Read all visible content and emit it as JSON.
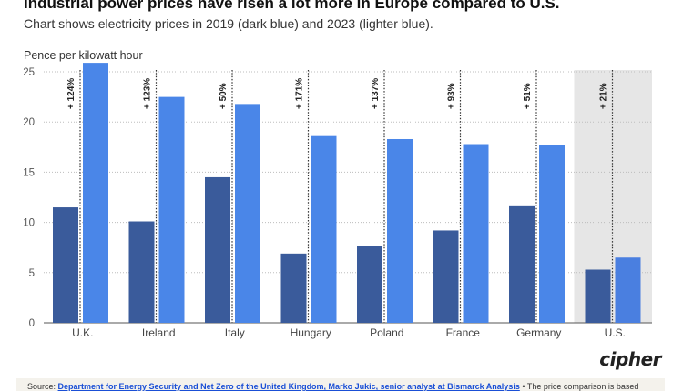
{
  "title": "Industrial power prices have risen a lot more in Europe compared to U.S.",
  "subtitle": "Chart shows electricity prices in 2019 (dark blue) and 2023 (lighter blue).",
  "logo": "cipher",
  "footer": {
    "prefix": "Source: ",
    "link": "Department for Energy Security and Net Zero of the United Kingdom, Marko Jukic, senior analyst at Bismarck Analysis",
    "suffix": " • The price comparison is based"
  },
  "colors": {
    "y2019": "#3a5b9b",
    "y2023": "#4a86e8",
    "us_y2023": "#4a7fe0",
    "highlight": "#e6e6e6",
    "grid": "#bdbdbd"
  },
  "chart_data": {
    "type": "bar",
    "ylabel": "Pence per kilowatt hour",
    "ylim": [
      0,
      26
    ],
    "yticks": [
      0,
      5,
      10,
      15,
      20,
      25
    ],
    "categories": [
      "U.K.",
      "Ireland",
      "Italy",
      "Hungary",
      "Poland",
      "France",
      "Germany",
      "U.S."
    ],
    "series": [
      {
        "name": "2019",
        "values": [
          11.5,
          10.1,
          14.5,
          6.9,
          7.7,
          9.2,
          11.7,
          5.3
        ]
      },
      {
        "name": "2023",
        "values": [
          25.9,
          22.5,
          21.8,
          18.6,
          18.3,
          17.8,
          17.7,
          6.5
        ]
      }
    ],
    "annotations": [
      "+ 124%",
      "+ 123%",
      "+ 50%",
      "+ 171%",
      "+ 137%",
      "+ 93%",
      "+ 51%",
      "+ 21%"
    ],
    "highlight_category": "U.S."
  }
}
